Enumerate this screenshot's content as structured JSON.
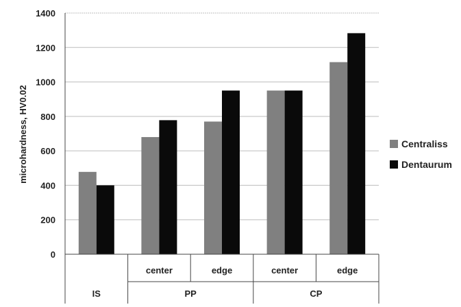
{
  "chart_data": {
    "type": "bar",
    "title": "",
    "ylabel": "microhardness, HV0.02",
    "xlabel": "",
    "ylim": [
      0,
      1400
    ],
    "yticks": [
      0,
      200,
      400,
      600,
      800,
      1000,
      1200,
      1400
    ],
    "grid": true,
    "legend_position": "right",
    "categories": [
      "",
      "center",
      "edge",
      "center",
      "edge"
    ],
    "groups": [
      {
        "label": "IS",
        "span": 1
      },
      {
        "label": "PP",
        "span": 2
      },
      {
        "label": "CP",
        "span": 2
      }
    ],
    "series": [
      {
        "name": "Centraliss",
        "color": "#808080",
        "values": [
          478,
          680,
          770,
          950,
          1115
        ]
      },
      {
        "name": "Dentaurum",
        "color": "#0a0a0a",
        "values": [
          400,
          778,
          950,
          950,
          1283
        ]
      }
    ]
  }
}
